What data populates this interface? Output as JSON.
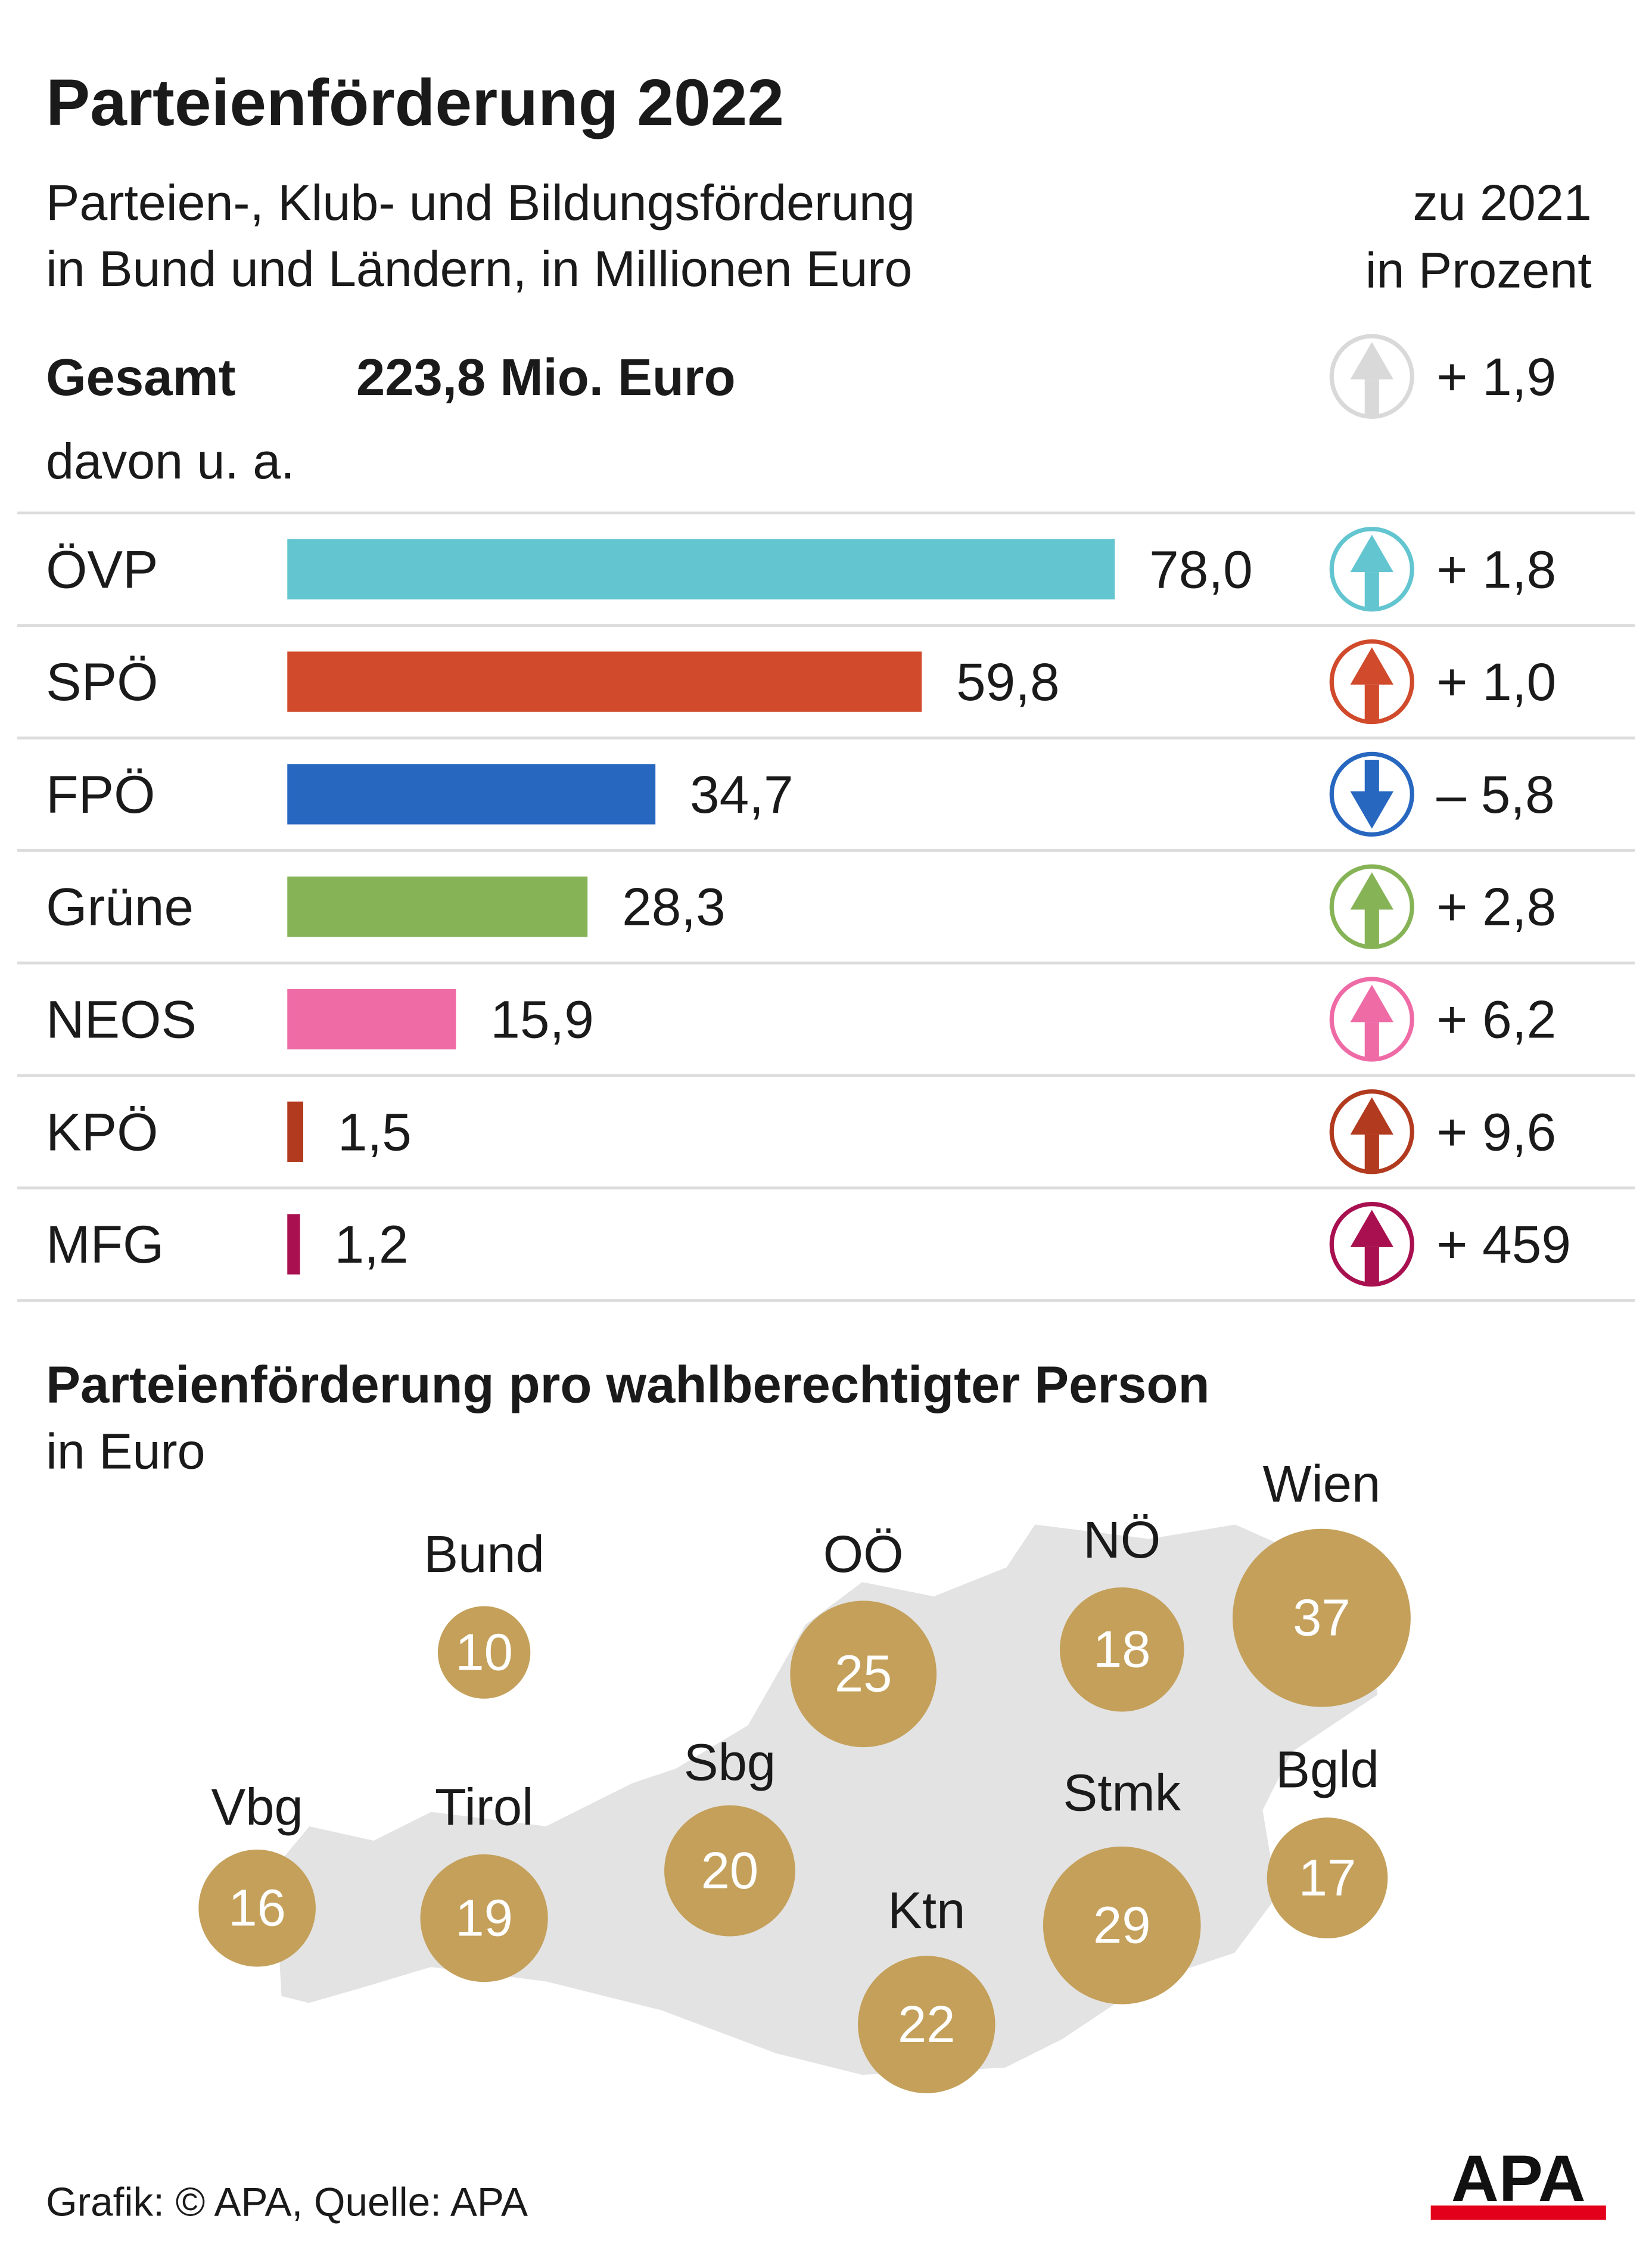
{
  "title": "Parteienförderung 2022",
  "source": "Grafik: © APA, Quelle: APA",
  "logo": "APA",
  "chart_data": [
    {
      "type": "bar",
      "subtitle": [
        "Parteien-, Klub- und Bildungsförderung",
        "in Bund und Ländern, in Millionen Euro"
      ],
      "change_header": [
        "zu 2021",
        "in Prozent"
      ],
      "total_label": "Gesamt",
      "total_value_label": "223,8 Mio. Euro",
      "total_change": 1.9,
      "total_change_label": "+ 1,9",
      "total_change_color": "#d9d9d9",
      "note": "davon u. a.",
      "categories": [
        "ÖVP",
        "SPÖ",
        "FPÖ",
        "Grüne",
        "NEOS",
        "KPÖ",
        "MFG"
      ],
      "values": [
        78.0,
        59.8,
        34.7,
        28.3,
        15.9,
        1.5,
        1.2
      ],
      "value_labels": [
        "78,0",
        "59,8",
        "34,7",
        "28,3",
        "15,9",
        "1,5",
        "1,2"
      ],
      "colors": [
        "#62c5d0",
        "#d04a2b",
        "#2767c0",
        "#86b356",
        "#ee6ba6",
        "#b23a1e",
        "#a8104f"
      ],
      "changes": [
        1.8,
        1.0,
        -5.8,
        2.8,
        6.2,
        9.6,
        459
      ],
      "change_labels": [
        "+ 1,8",
        "+ 1,0",
        "– 5,8",
        "+ 2,8",
        "+ 6,2",
        "+ 9,6",
        "+ 459"
      ]
    },
    {
      "type": "bubble",
      "title": "Parteienförderung pro wahlberechtigter Person",
      "subtitle": "in Euro",
      "categories": [
        "Bund",
        "OÖ",
        "NÖ",
        "Wien",
        "Vbg",
        "Tirol",
        "Sbg",
        "Stmk",
        "Bgld",
        "Ktn"
      ],
      "values": [
        10,
        25,
        18,
        37,
        16,
        19,
        20,
        29,
        17,
        22
      ],
      "color": "#c4a05a"
    }
  ]
}
